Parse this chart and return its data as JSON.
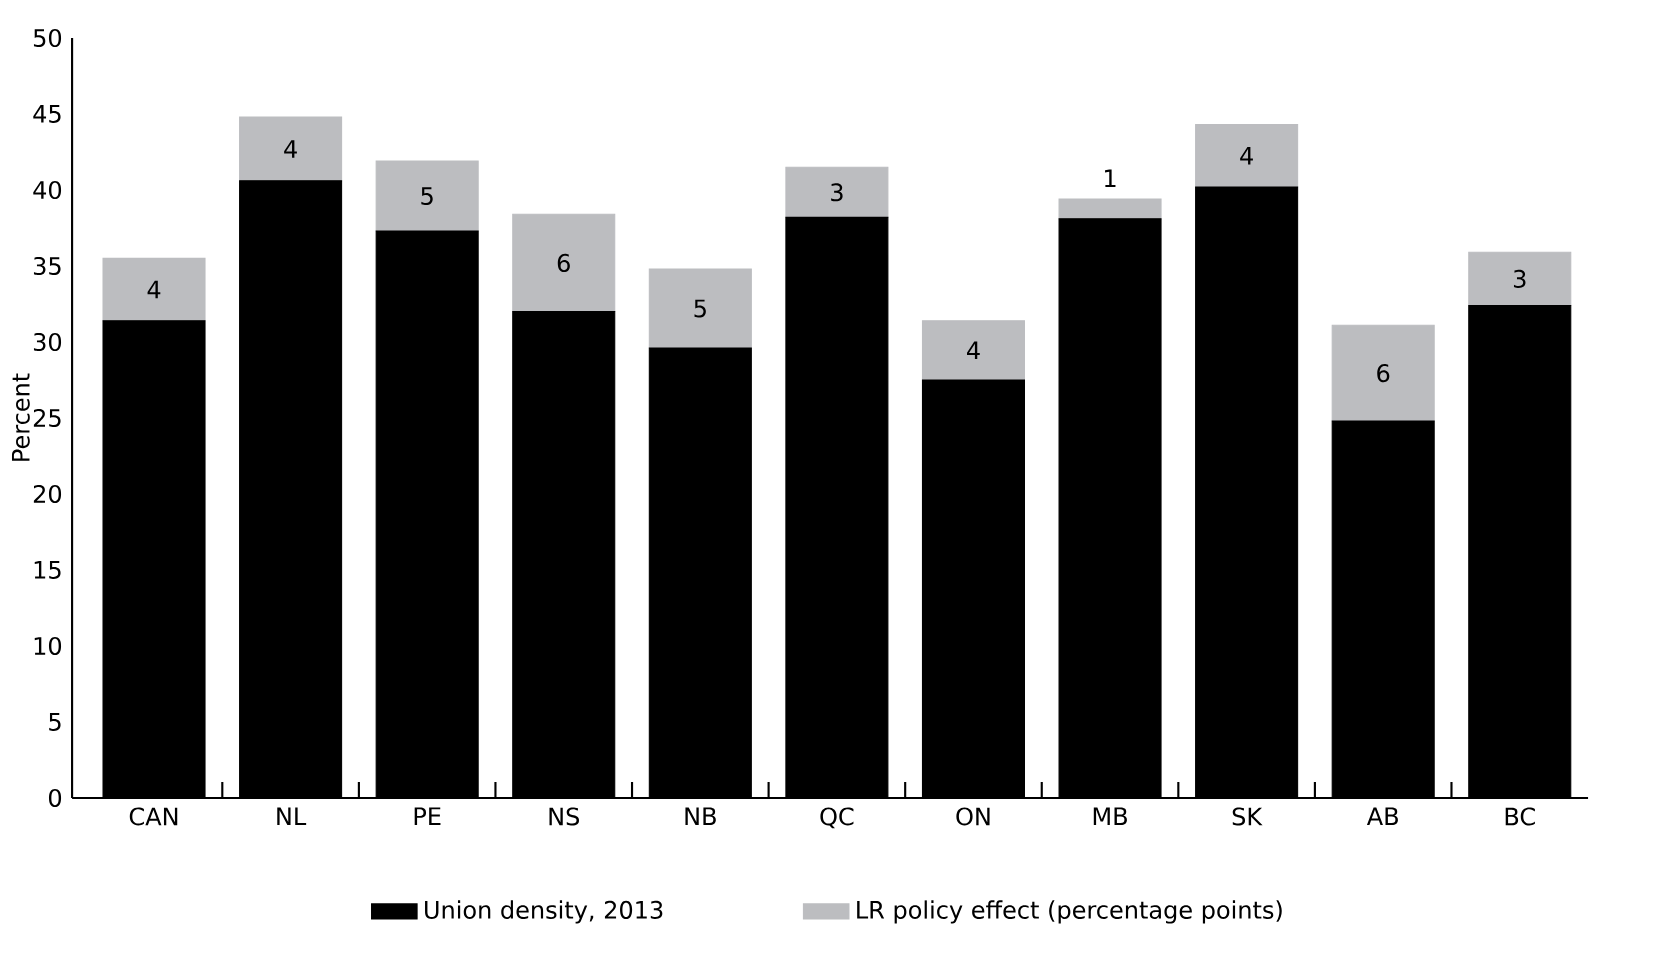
{
  "chart_data": {
    "type": "bar",
    "stacked": true,
    "ylabel": "Percent",
    "categories": [
      "CAN",
      "NL",
      "PE",
      "NS",
      "NB",
      "QC",
      "ON",
      "MB",
      "SK",
      "AB",
      "BC"
    ],
    "series": [
      {
        "name": "Union density, 2013",
        "color": "#000000",
        "values": [
          31.4,
          40.6,
          37.3,
          32.0,
          29.6,
          38.2,
          27.5,
          38.1,
          40.2,
          24.8,
          32.4
        ]
      },
      {
        "name": "LR policy effect (percentage points)",
        "color": "#bcbdc0",
        "values": [
          4.1,
          4.2,
          4.6,
          6.4,
          5.2,
          3.3,
          3.9,
          1.3,
          4.1,
          6.3,
          3.5
        ],
        "value_labels": [
          "4",
          "4",
          "5",
          "6",
          "5",
          "3",
          "4",
          "1",
          "4",
          "6",
          "3"
        ]
      }
    ],
    "ylim": [
      0,
      50
    ],
    "yticks": [
      0,
      5,
      10,
      15,
      20,
      25,
      30,
      35,
      40,
      45,
      50
    ],
    "legend": "bottom"
  }
}
